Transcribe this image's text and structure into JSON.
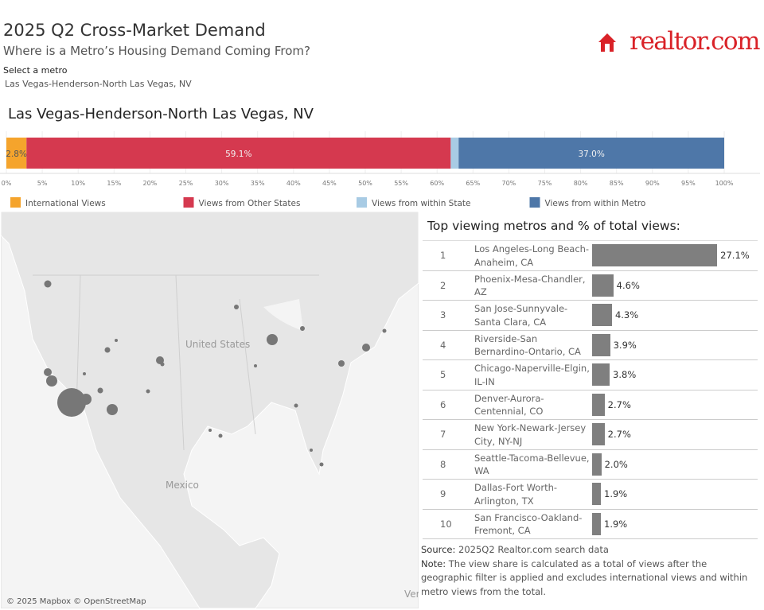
{
  "header": {
    "title": "2025 Q2 Cross-Market Demand",
    "subtitle": "Where is a Metro’s Housing Demand Coming From?",
    "logo": "realtor.com",
    "select_label": "Select a metro",
    "selected_metro": "Las Vegas-Henderson-North Las Vegas, NV"
  },
  "map": {
    "labels": [
      "United States",
      "Mexico",
      "Ver"
    ],
    "attribution": "© 2025 Mapbox © OpenStreetMap"
  },
  "footer": {
    "source_label": "Source:",
    "source": "2025Q2 Realtor.com search data",
    "note_label": "Note:",
    "note": "The view share is calculated as a total of views after the geographic filter is applied and excludes international views and within metro views from the total."
  },
  "chart_data": [
    {
      "type": "stacked_bar",
      "title": "Las Vegas-Henderson-North Las Vegas, NV",
      "xlim": [
        0,
        100
      ],
      "xticks": [
        {
          "value": 0,
          "label": "0%"
        },
        {
          "value": 5,
          "label": "5%"
        },
        {
          "value": 10,
          "label": "10%"
        },
        {
          "value": 15,
          "label": "15%"
        },
        {
          "value": 20,
          "label": "20%"
        },
        {
          "value": 25,
          "label": "25%"
        },
        {
          "value": 30,
          "label": "30%"
        },
        {
          "value": 35,
          "label": "35%"
        },
        {
          "value": 40,
          "label": "40%"
        },
        {
          "value": 45,
          "label": "45%"
        },
        {
          "value": 50,
          "label": "50%"
        },
        {
          "value": 55,
          "label": "55%"
        },
        {
          "value": 60,
          "label": "60%"
        },
        {
          "value": 65,
          "label": "65%"
        },
        {
          "value": 70,
          "label": "70%"
        },
        {
          "value": 75,
          "label": "75%"
        },
        {
          "value": 80,
          "label": "80%"
        },
        {
          "value": 85,
          "label": "85%"
        },
        {
          "value": 90,
          "label": "90%"
        },
        {
          "value": 95,
          "label": "95%"
        },
        {
          "value": 100,
          "label": "100%"
        }
      ],
      "grid": true,
      "series": [
        {
          "name": "International Views",
          "color": "#f5a42c",
          "values": [
            2.8
          ],
          "value_labels": [
            "2.8%"
          ]
        },
        {
          "name": "Views from Other States",
          "color": "#d5394f",
          "values": [
            59.1
          ],
          "value_labels": [
            "59.1%"
          ]
        },
        {
          "name": "Views from within State",
          "color": "#a8cbe4",
          "values": [
            1.1
          ]
        },
        {
          "name": "Views from within Metro",
          "color": "#4e77a8",
          "values": [
            37.0
          ],
          "value_labels": [
            "37.0%"
          ]
        }
      ]
    },
    {
      "type": "bar",
      "title": "Top viewing metros and % of total views:",
      "color": "#7f7f7f",
      "xlim": [
        0,
        30
      ],
      "ranks": [
        "1",
        "2",
        "3",
        "4",
        "5",
        "6",
        "7",
        "8",
        "9",
        "10"
      ],
      "categories": [
        "Los Angeles-Long Beach-Anaheim, CA",
        "Phoenix-Mesa-Chandler, AZ",
        "San Jose-Sunnyvale-Santa Clara, CA",
        "Riverside-San Bernardino-Ontario, CA",
        "Chicago-Naperville-Elgin, IL-IN",
        "Denver-Aurora-Centennial, CO",
        "New York-Newark-Jersey City, NY-NJ",
        "Seattle-Tacoma-Bellevue, WA",
        "Dallas-Fort Worth-Arlington, TX",
        "San Francisco-Oakland-Fremont, CA"
      ],
      "values": [
        27.1,
        4.6,
        4.3,
        3.9,
        3.8,
        2.7,
        2.7,
        2.0,
        1.9,
        1.9
      ],
      "value_labels": [
        "27.1%",
        "4.6%",
        "4.3%",
        "3.9%",
        "3.8%",
        "2.7%",
        "2.7%",
        "2.0%",
        "1.9%",
        "1.9%"
      ]
    }
  ]
}
